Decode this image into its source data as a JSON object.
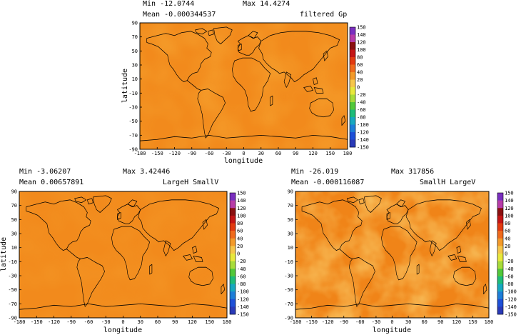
{
  "panels": [
    {
      "min_label": "Min -12.0744",
      "max_label": "Max 14.4274",
      "mean_label": "Mean -0.000344537",
      "title": "filtered Gp",
      "xlabel": "longitude",
      "ylabel": "latitude"
    },
    {
      "min_label": "Min -3.06207",
      "max_label": "Max 3.42446",
      "mean_label": "Mean 0.00657891",
      "title": "LargeH SmallV",
      "xlabel": "longitude",
      "ylabel": "latitude"
    },
    {
      "min_label": "Min -26.019",
      "max_label": "Max 317856",
      "mean_label": "Mean -0.000116087",
      "title": "SmallH LargeV",
      "xlabel": "longitude",
      "ylabel": ""
    }
  ],
  "chart_data": [
    {
      "type": "heatmap",
      "title": "filtered Gp",
      "xlabel": "longitude",
      "ylabel": "latitude",
      "xlim": [
        -180,
        180
      ],
      "ylim": [
        -90,
        90
      ],
      "xticks": [
        -180,
        -150,
        -120,
        -90,
        -60,
        -30,
        0,
        30,
        60,
        90,
        120,
        150,
        180
      ],
      "yticks": [
        90,
        70,
        50,
        30,
        10,
        -10,
        -30,
        -50,
        -70,
        -90
      ],
      "colorbar_ticks": [
        150,
        140,
        120,
        100,
        80,
        60,
        40,
        20,
        0,
        -20,
        -40,
        -60,
        -80,
        -100,
        -120,
        -140,
        -150
      ],
      "min": -12.0744,
      "max": 14.4274,
      "mean": -0.000344537,
      "base_color": "#f28a1c"
    },
    {
      "type": "heatmap",
      "title": "LargeH SmallV",
      "xlabel": "longitude",
      "ylabel": "latitude",
      "xlim": [
        -180,
        180
      ],
      "ylim": [
        -90,
        90
      ],
      "xticks": [
        -180,
        -150,
        -120,
        -90,
        -60,
        -30,
        0,
        30,
        60,
        90,
        120,
        150,
        180
      ],
      "yticks": [
        90,
        70,
        50,
        30,
        10,
        -10,
        -30,
        -50,
        -70,
        -90
      ],
      "colorbar_ticks": [
        150,
        140,
        120,
        100,
        80,
        60,
        40,
        20,
        0,
        -20,
        -40,
        -60,
        -80,
        -100,
        -120,
        -140,
        -150
      ],
      "min": -3.06207,
      "max": 3.42446,
      "mean": 0.00657891,
      "base_color": "#f28a1c"
    },
    {
      "type": "heatmap",
      "title": "SmallH LargeV",
      "xlabel": "longitude",
      "ylabel": "",
      "xlim": [
        -180,
        180
      ],
      "ylim": [
        -90,
        90
      ],
      "xticks": [
        -180,
        -150,
        -120,
        -90,
        -60,
        -30,
        0,
        30,
        60,
        90,
        120,
        150,
        180
      ],
      "yticks": [
        90,
        70,
        50,
        30,
        10,
        -10,
        -30,
        -50,
        -70,
        -90
      ],
      "colorbar_ticks": [
        150,
        140,
        120,
        100,
        80,
        60,
        40,
        20,
        0,
        -20,
        -40,
        -60,
        -80,
        -100,
        -120,
        -140,
        -150
      ],
      "min": -26.019,
      "max": 317856,
      "mean": -0.000116087,
      "base_color": "#f08418"
    }
  ],
  "colorbar_colors": [
    "#ffffff",
    "#7a2fbf",
    "#b83ca8",
    "#8b1010",
    "#c41515",
    "#e23a10",
    "#ef6a1c",
    "#f39a2a",
    "#f6c64a",
    "#e8e83c",
    "#a8dc3a",
    "#52c83a",
    "#1ebc7a",
    "#18a8c0",
    "#1e7ed8",
    "#1e50d8",
    "#2a3ab8"
  ]
}
